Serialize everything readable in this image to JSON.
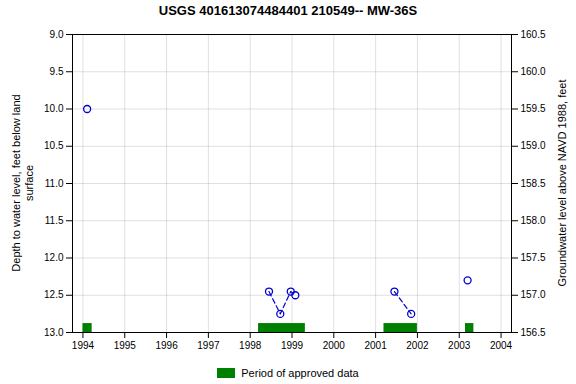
{
  "chart_data": {
    "type": "scatter",
    "title": "USGS 401613074484401 210549-- MW-36S",
    "ylabel": "Depth to water level, feet below land\nsurface",
    "y2label": "Groundwater level above NAVD 1988, feet",
    "xlim": [
      1993.75,
      2004.25
    ],
    "xticks": [
      1994,
      1995,
      1996,
      1997,
      1998,
      1999,
      2000,
      2001,
      2002,
      2003,
      2004
    ],
    "ylim": [
      13.0,
      9.0
    ],
    "yticks": [
      {
        "value": 9.0,
        "label": "9.0"
      },
      9.5,
      {
        "value": 10.0,
        "label": "10.0"
      },
      10.5,
      {
        "value": 11.0,
        "label": "11.0"
      },
      11.5,
      {
        "value": 12.0,
        "label": "12.0"
      },
      12.5,
      {
        "value": 13.0,
        "label": "13.0"
      }
    ],
    "y2lim": [
      156.5,
      160.5
    ],
    "y2ticks": [
      160.5,
      {
        "value": 160.0,
        "label": "160.0"
      },
      159.5,
      {
        "value": 159.0,
        "label": "159.0"
      },
      158.5,
      {
        "value": 158.0,
        "label": "158.0"
      },
      157.5,
      {
        "value": 157.0,
        "label": "157.0"
      },
      156.5
    ],
    "grid": true,
    "legend": "bottom",
    "series": [
      {
        "type": "line",
        "line_style": "dashed",
        "color": "#0000CC",
        "x": [
          1998.45,
          1998.72,
          1998.97,
          1999.08
        ],
        "values": [
          12.45,
          12.75,
          12.45,
          12.5
        ]
      },
      {
        "type": "line",
        "line_style": "dashed",
        "color": "#0000CC",
        "x": [
          2001.45,
          2001.85
        ],
        "values": [
          12.45,
          12.75
        ]
      },
      {
        "type": "scatter",
        "marker": "circle",
        "color": "#0000CC",
        "x": [
          1994.1,
          1998.45,
          1998.72,
          1998.97,
          1999.08,
          2001.45,
          2001.85,
          2003.2
        ],
        "values": [
          10.0,
          12.45,
          12.75,
          12.45,
          12.5,
          12.45,
          12.75,
          12.3
        ]
      }
    ],
    "bands": [
      {
        "name": "Period of approved data",
        "color": "#008000",
        "ranges": [
          [
            1994.0,
            1994.22
          ],
          [
            1998.2,
            1999.32
          ],
          [
            2001.2,
            2002.0
          ],
          [
            2003.15,
            2003.35
          ]
        ],
        "y": [
          12.88,
          13.0
        ]
      }
    ]
  }
}
